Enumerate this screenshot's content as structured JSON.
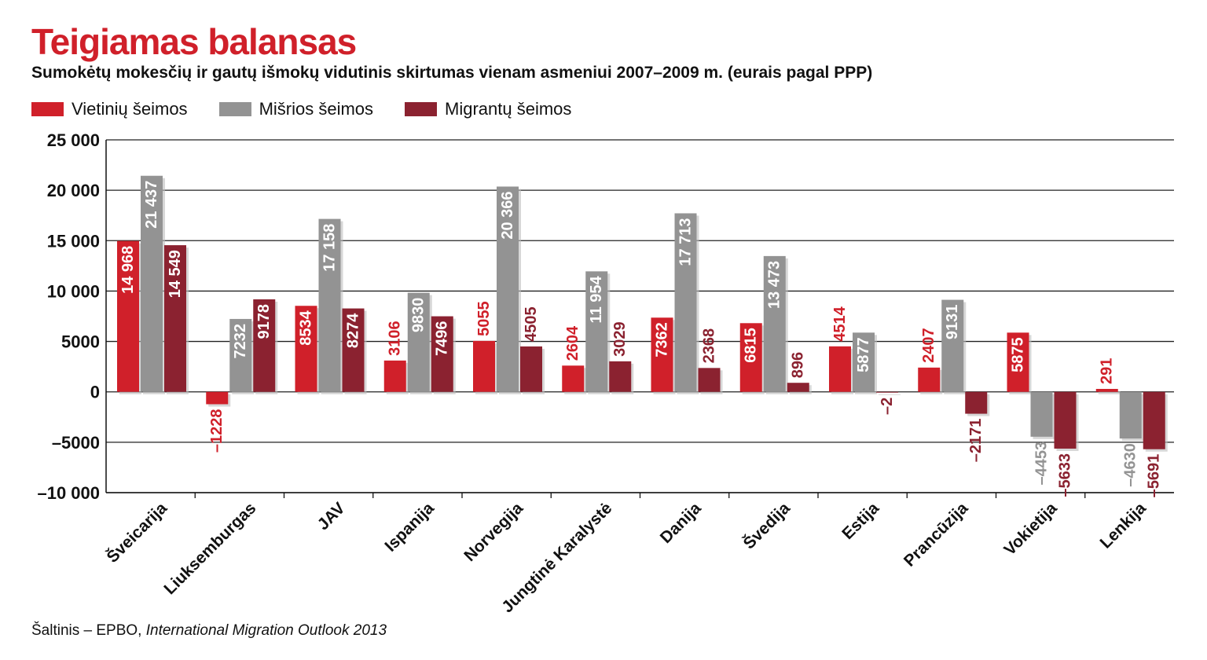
{
  "title": "Teigiamas balansas",
  "subtitle": "Sumokėtų mokesčių ir gautų išmokų vidutinis skirtumas vienam asmeniui 2007–2009 m. (eurais pagal PPP)",
  "source": {
    "prefix": "Šaltinis – EPBO, ",
    "italic": "International Migration Outlook 2013"
  },
  "colors": {
    "native": "#d0202a",
    "mixed": "#939393",
    "migrant": "#8b2230",
    "grid": "#222222"
  },
  "chart_data": {
    "type": "bar",
    "title": "Teigiamas balansas",
    "xlabel": "",
    "ylabel": "",
    "ylim": [
      -10000,
      25000
    ],
    "yticks": [
      25000,
      20000,
      15000,
      10000,
      5000,
      0,
      -5000,
      -10000
    ],
    "ytick_labels": [
      "25 000",
      "20 000",
      "15 000",
      "10 000",
      "5000",
      "0",
      "–5000",
      "–10 000"
    ],
    "grid": true,
    "legend_position": "top-left",
    "categories": [
      "Šveicarija",
      "Liuksemburgas",
      "JAV",
      "Ispanija",
      "Norvegija",
      "Jungtinė Karalystė",
      "Danija",
      "Švedija",
      "Estija",
      "Prancūzija",
      "Vokietija",
      "Lenkija"
    ],
    "series": [
      {
        "name": "Vietinių šeimos",
        "color": "#d0202a",
        "values": [
          14968,
          -1228,
          8534,
          3106,
          5055,
          2604,
          7362,
          6815,
          4514,
          2407,
          5875,
          291
        ],
        "labels": [
          "14 968",
          "–1228",
          "8534",
          "3106",
          "5055",
          "2604",
          "7362",
          "6815",
          "4514",
          "2407",
          "5875",
          "291"
        ]
      },
      {
        "name": "Mišrios šeimos",
        "color": "#939393",
        "values": [
          21437,
          7232,
          17158,
          9830,
          20366,
          11954,
          17713,
          13473,
          5877,
          9131,
          -4453,
          -4630
        ],
        "labels": [
          "21 437",
          "7232",
          "17 158",
          "9830",
          "20 366",
          "11 954",
          "17 713",
          "13 473",
          "5877",
          "9131",
          "–4453",
          "–4630"
        ]
      },
      {
        "name": "Migrantų šeimos",
        "color": "#8b2230",
        "values": [
          14549,
          9178,
          8274,
          7496,
          4505,
          3029,
          2368,
          896,
          -2,
          -2171,
          -5633,
          -5691
        ],
        "labels": [
          "14 549",
          "9178",
          "8274",
          "7496",
          "4505",
          "3029",
          "2368",
          "896",
          "–2",
          "–2171",
          "–5633",
          "–5691"
        ]
      }
    ]
  }
}
